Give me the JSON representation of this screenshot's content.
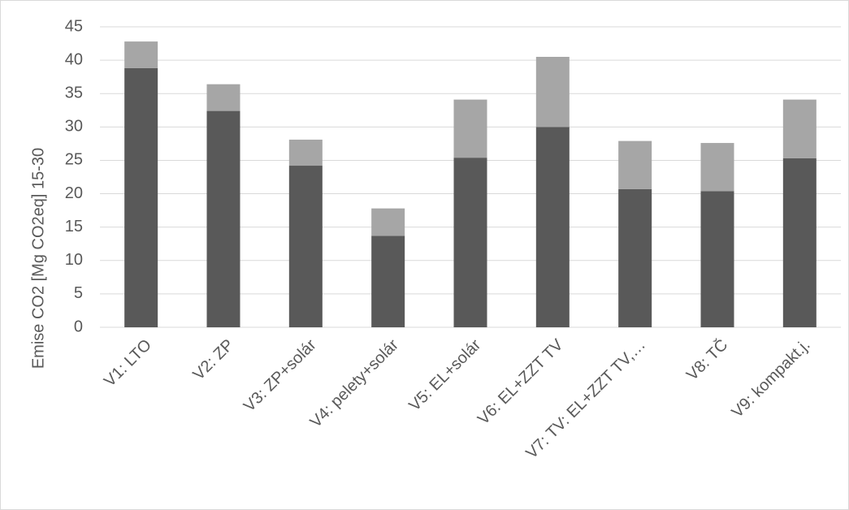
{
  "chart_data": {
    "type": "stacked_bar",
    "y_label": "Emise CO2 [Mg CO2eq] 15-30",
    "categories": [
      "V1: LTO",
      "V2: ZP",
      "V3: ZP+solár",
      "V4: pelety+solár",
      "V5: EL+solár",
      "V6: EL+ZZT TV",
      "V7: TV: EL+ZZT TV,…",
      "V8: TČ",
      "V9: kompakt.j."
    ],
    "series": [
      {
        "color": "#595959",
        "values": [
          38.8,
          32.4,
          24.2,
          13.7,
          25.4,
          30.0,
          20.7,
          20.4,
          25.3
        ]
      },
      {
        "color": "#a6a6a6",
        "values": [
          4.0,
          4.0,
          3.9,
          4.1,
          8.7,
          10.5,
          7.2,
          7.2,
          8.8
        ]
      }
    ],
    "ylim": [
      0,
      45
    ],
    "yticks": [
      0,
      5,
      10,
      15,
      20,
      25,
      30,
      35,
      40,
      45
    ],
    "grid": true
  }
}
